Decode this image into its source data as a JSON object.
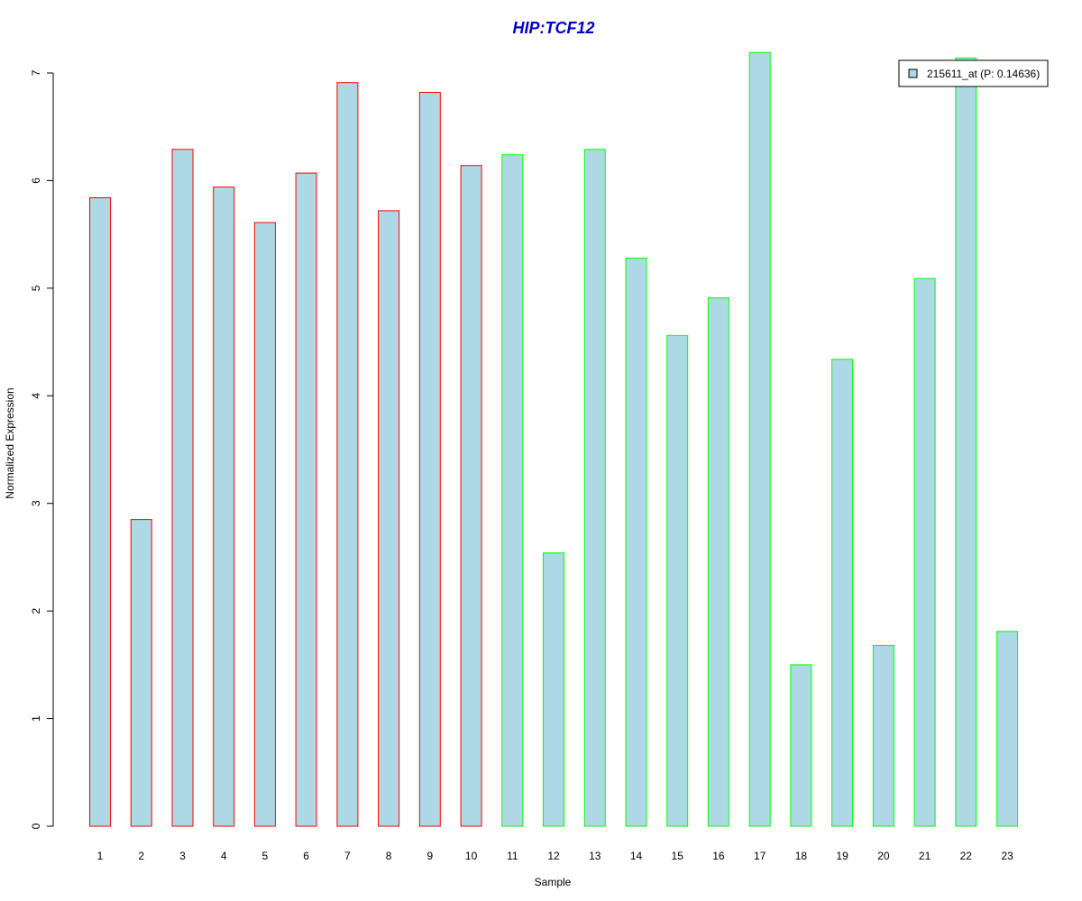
{
  "chart_data": {
    "type": "bar",
    "title": "HIP:TCF12",
    "xlabel": "Sample",
    "ylabel": "Normalized Expression",
    "categories": [
      "1",
      "2",
      "3",
      "4",
      "5",
      "6",
      "7",
      "8",
      "9",
      "10",
      "11",
      "12",
      "13",
      "14",
      "15",
      "16",
      "17",
      "18",
      "19",
      "20",
      "21",
      "22",
      "23"
    ],
    "series": [
      {
        "name": "215611_at (P: 0.14636)",
        "values": [
          5.84,
          2.85,
          6.29,
          5.94,
          5.61,
          6.07,
          6.91,
          5.72,
          6.82,
          6.14,
          6.24,
          2.54,
          6.29,
          5.28,
          4.56,
          4.91,
          7.19,
          1.5,
          4.34,
          1.68,
          5.09,
          7.14,
          1.81
        ]
      }
    ],
    "ylim": [
      0,
      7.25
    ],
    "yticks": [
      "0",
      "1",
      "2",
      "3",
      "4",
      "5",
      "6",
      "7"
    ],
    "grid": false,
    "legend_position": "top-right",
    "colors": {
      "bar_fill": "#add8e6",
      "group1_border": "#ff0000",
      "group2_border": "#00ff00",
      "title": "#0000cc"
    },
    "border_groups": [
      1,
      1,
      1,
      1,
      1,
      1,
      1,
      1,
      1,
      1,
      2,
      2,
      2,
      2,
      2,
      2,
      2,
      2,
      2,
      2,
      2,
      2,
      2
    ]
  }
}
